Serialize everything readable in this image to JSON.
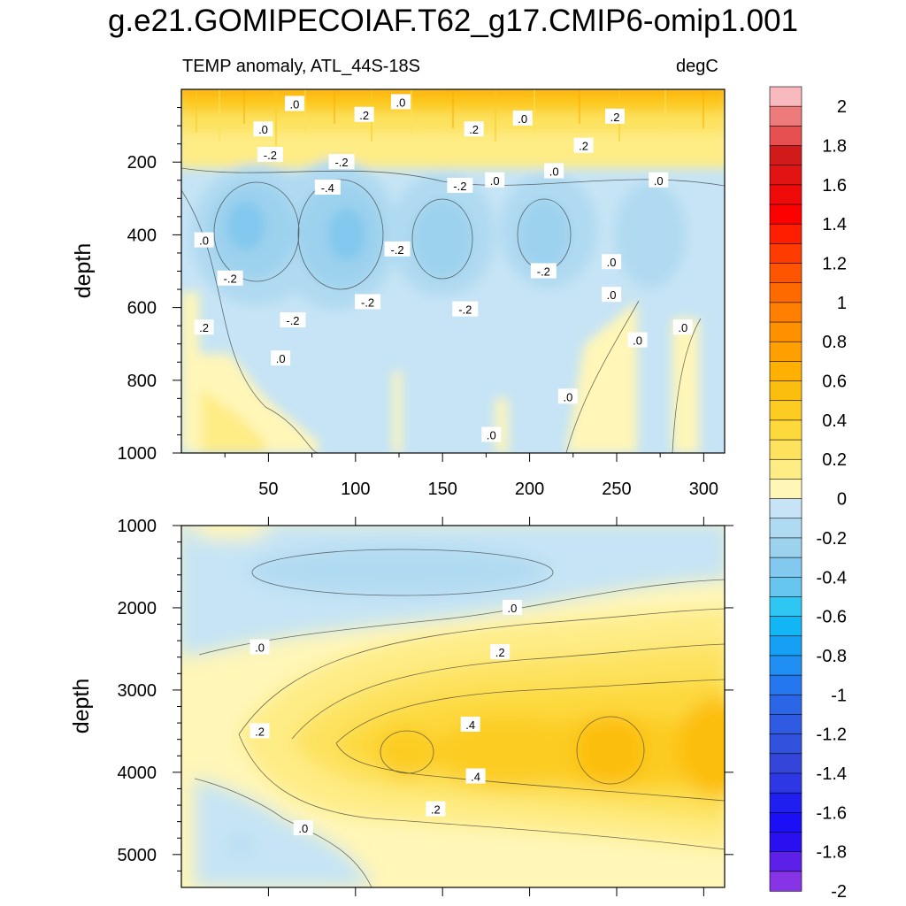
{
  "title": "g.e21.GOMIPECOIAF.T62_g17.CMIP6-omip1.001",
  "chart_data": [
    {
      "type": "heatmap",
      "panel": "upper",
      "subtitle": "TEMP anomaly, ATL_44S-18S",
      "units": "degC",
      "ylabel": "depth",
      "xlabel": "",
      "xlim": [
        0,
        312
      ],
      "ylim": [
        1000,
        0
      ],
      "xticks": [
        50,
        100,
        150,
        200,
        250,
        300
      ],
      "yticks": [
        200,
        400,
        600,
        800,
        1000
      ],
      "contour_labels": [
        {
          "text": ".0",
          "x": 65,
          "y": 40
        },
        {
          "text": ".2",
          "x": 105,
          "y": 70
        },
        {
          "text": ".0",
          "x": 126,
          "y": 35
        },
        {
          "text": ".2",
          "x": 168,
          "y": 110
        },
        {
          "text": ".0",
          "x": 196,
          "y": 80
        },
        {
          "text": ".2",
          "x": 249,
          "y": 75
        },
        {
          "text": ".2",
          "x": 231,
          "y": 155
        },
        {
          "text": ".0",
          "x": 47,
          "y": 110
        },
        {
          "text": "-.2",
          "x": 51,
          "y": 180
        },
        {
          "text": "-.2",
          "x": 92,
          "y": 200
        },
        {
          "text": "-.4",
          "x": 84,
          "y": 270
        },
        {
          "text": "-.2",
          "x": 160,
          "y": 265
        },
        {
          "text": ".0",
          "x": 180,
          "y": 250
        },
        {
          "text": ".0",
          "x": 214,
          "y": 225
        },
        {
          "text": ".0",
          "x": 274,
          "y": 250
        },
        {
          "text": ".0",
          "x": 13,
          "y": 415
        },
        {
          "text": "-.2",
          "x": 28,
          "y": 520
        },
        {
          "text": "-.2",
          "x": 124,
          "y": 440
        },
        {
          "text": "-.2",
          "x": 107,
          "y": 585
        },
        {
          "text": "-.2",
          "x": 64,
          "y": 635
        },
        {
          "text": "-.2",
          "x": 163,
          "y": 605
        },
        {
          "text": "-.2",
          "x": 208,
          "y": 500
        },
        {
          "text": ".0",
          "x": 247,
          "y": 475
        },
        {
          "text": ".0",
          "x": 247,
          "y": 565
        },
        {
          "text": ".2",
          "x": 13,
          "y": 655
        },
        {
          "text": ".0",
          "x": 57,
          "y": 740
        },
        {
          "text": ".0",
          "x": 262,
          "y": 690
        },
        {
          "text": ".0",
          "x": 288,
          "y": 655
        },
        {
          "text": ".0",
          "x": 222,
          "y": 845
        },
        {
          "text": ".0",
          "x": 178,
          "y": 950
        }
      ]
    },
    {
      "type": "heatmap",
      "panel": "lower",
      "ylabel": "depth",
      "xlabel": "",
      "xlim": [
        0,
        312
      ],
      "ylim": [
        5400,
        1000
      ],
      "yticks": [
        1000,
        2000,
        3000,
        4000,
        5000
      ],
      "contour_labels": [
        {
          "text": ".0",
          "x": 190,
          "y": 2000
        },
        {
          "text": ".0",
          "x": 45,
          "y": 2480
        },
        {
          "text": ".2",
          "x": 183,
          "y": 2540
        },
        {
          "text": ".2",
          "x": 45,
          "y": 3500
        },
        {
          "text": ".4",
          "x": 166,
          "y": 3420
        },
        {
          "text": ".4",
          "x": 169,
          "y": 4050
        },
        {
          "text": ".2",
          "x": 146,
          "y": 4450
        },
        {
          "text": ".0",
          "x": 70,
          "y": 4680
        }
      ]
    }
  ],
  "colorbar": {
    "labels": [
      "2",
      "1.8",
      "1.6",
      "1.4",
      "1.2",
      "1",
      "0.8",
      "0.6",
      "0.4",
      "0.2",
      "0",
      "-0.2",
      "-0.4",
      "-0.6",
      "-0.8",
      "-1",
      "-1.2",
      "-1.4",
      "-1.6",
      "-1.8",
      "-2"
    ],
    "colors": [
      "#f7b9bd",
      "#ee7b7b",
      "#e65050",
      "#d11a1a",
      "#e11313",
      "#ef0a0a",
      "#ff0000",
      "#ff1e00",
      "#ff3c00",
      "#ff5500",
      "#ff6a00",
      "#ff7f00",
      "#ff9000",
      "#ffa000",
      "#ffb000",
      "#fcbe0e",
      "#fccc22",
      "#fdd93c",
      "#fde25e",
      "#feec85",
      "#fff6b8",
      "#c6e4f5",
      "#b0daf1",
      "#9dd2ee",
      "#83c8ee",
      "#66c6f0",
      "#2ec7f4",
      "#13b6f5",
      "#159ff5",
      "#1f8ff3",
      "#2577f0",
      "#2b66e7",
      "#2f5ae2",
      "#3151dd",
      "#3346d9",
      "#2d38e4",
      "#1f1ff0",
      "#1b0ff6",
      "#2a10f0",
      "#5d20e8",
      "#8634e6"
    ]
  }
}
